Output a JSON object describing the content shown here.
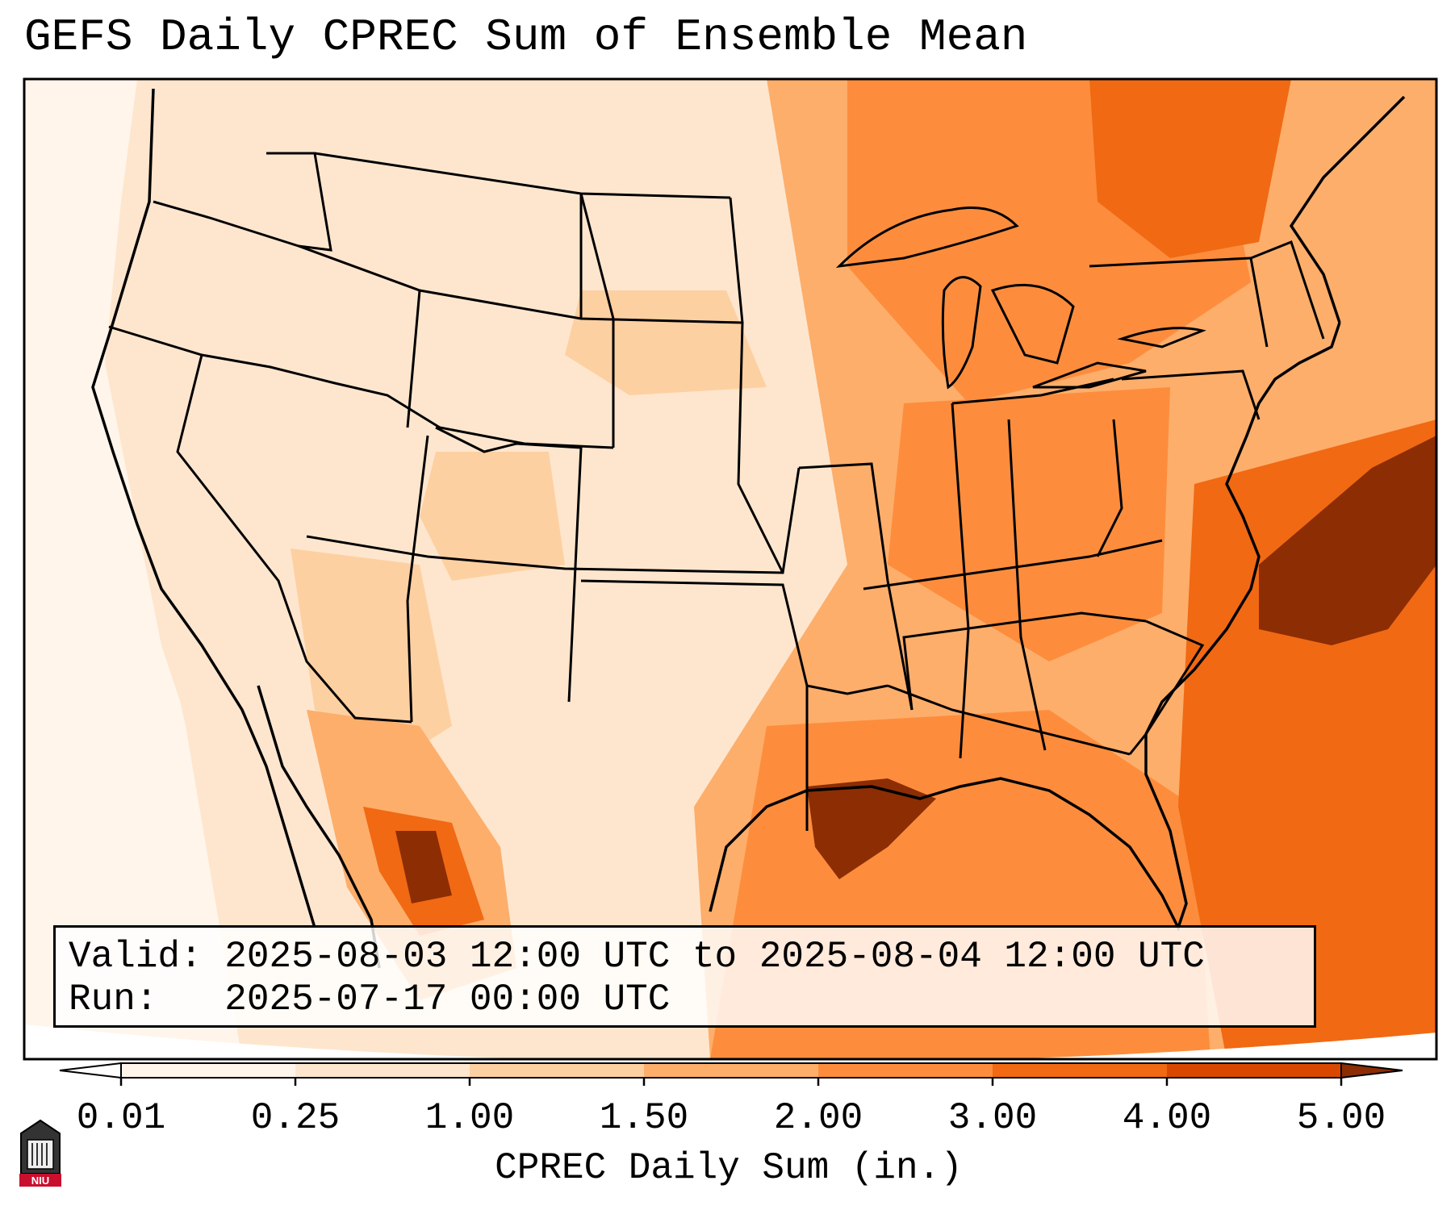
{
  "title": "GEFS Daily CPREC Sum of Ensemble Mean",
  "info": {
    "valid_label": "Valid:",
    "valid_value": "2025-08-03 12:00 UTC to 2025-08-04 12:00 UTC",
    "run_label": "Run:",
    "run_value": "2025-07-17 00:00 UTC"
  },
  "colorbar": {
    "label": "CPREC Daily Sum (in.)",
    "ticks": [
      "0.01",
      "0.25",
      "1.00",
      "1.50",
      "2.00",
      "3.00",
      "4.00",
      "5.00"
    ],
    "colors": [
      "#fff5eb",
      "#fee6ce",
      "#fdd0a2",
      "#fdae6b",
      "#fd8d3c",
      "#f16913",
      "#d94801",
      "#8c2d04"
    ]
  },
  "logo": {
    "text": "NIU"
  }
}
